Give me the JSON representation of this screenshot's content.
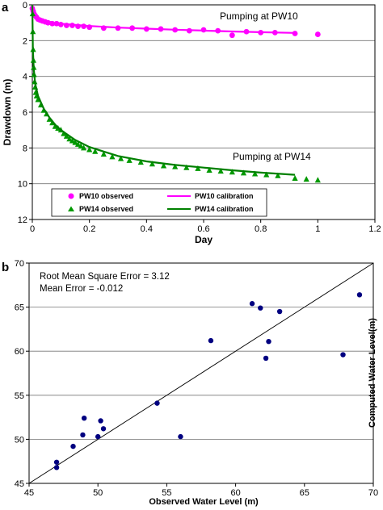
{
  "colors": {
    "pw10": "#ff00ff",
    "pw14": "#008000",
    "pw14_obs": "#009900",
    "scatter": "#000080",
    "grid": "#777777"
  },
  "chart_data": [
    {
      "panel_label": "a",
      "type": "line",
      "xlabel": "Day",
      "ylabel": "Drawdown (m)",
      "xlim": [
        0,
        1.2
      ],
      "ylim": [
        12,
        0
      ],
      "y_inverted": true,
      "x_ticks": [
        "0",
        "0.2",
        "0.4",
        "0.6",
        "0.8",
        "1",
        "1.2"
      ],
      "y_ticks": [
        "0",
        "2",
        "4",
        "6",
        "8",
        "10",
        "12"
      ],
      "grid": "horizontal",
      "legend_position": "bottom-center",
      "annotations": [
        "Pumping at PW10",
        "Pumping at PW14"
      ],
      "series": [
        {
          "name": "PW10 observed",
          "kind": "scatter",
          "marker": "circle",
          "x": [
            0.0,
            0.003,
            0.006,
            0.01,
            0.015,
            0.02,
            0.027,
            0.035,
            0.045,
            0.055,
            0.07,
            0.085,
            0.1,
            0.12,
            0.14,
            0.16,
            0.18,
            0.2,
            0.25,
            0.3,
            0.35,
            0.4,
            0.45,
            0.5,
            0.55,
            0.6,
            0.65,
            0.7,
            0.75,
            0.8,
            0.85,
            0.92,
            1.0
          ],
          "y": [
            0.2,
            0.35,
            0.5,
            0.6,
            0.7,
            0.8,
            0.85,
            0.9,
            0.95,
            1.0,
            1.05,
            1.05,
            1.1,
            1.15,
            1.15,
            1.2,
            1.2,
            1.25,
            1.3,
            1.3,
            1.3,
            1.35,
            1.35,
            1.4,
            1.45,
            1.4,
            1.45,
            1.7,
            1.5,
            1.55,
            1.55,
            1.6,
            1.65
          ]
        },
        {
          "name": "PW10 calibration",
          "kind": "line",
          "x": [
            0.0,
            0.002,
            0.005,
            0.01,
            0.02,
            0.04,
            0.07,
            0.1,
            0.15,
            0.2,
            0.3,
            0.4,
            0.5,
            0.6,
            0.7,
            0.8,
            0.92
          ],
          "y": [
            0.0,
            0.3,
            0.45,
            0.6,
            0.75,
            0.88,
            0.98,
            1.05,
            1.12,
            1.18,
            1.27,
            1.33,
            1.39,
            1.44,
            1.49,
            1.53,
            1.57
          ]
        },
        {
          "name": "PW14 observed",
          "kind": "scatter",
          "marker": "triangle",
          "x": [
            0.001,
            0.002,
            0.003,
            0.004,
            0.005,
            0.006,
            0.008,
            0.01,
            0.012,
            0.015,
            0.02,
            0.03,
            0.04,
            0.05,
            0.06,
            0.07,
            0.08,
            0.09,
            0.1,
            0.11,
            0.12,
            0.13,
            0.14,
            0.15,
            0.16,
            0.17,
            0.18,
            0.2,
            0.22,
            0.25,
            0.28,
            0.31,
            0.34,
            0.38,
            0.42,
            0.46,
            0.5,
            0.54,
            0.58,
            0.62,
            0.66,
            0.7,
            0.74,
            0.78,
            0.82,
            0.86,
            0.92,
            0.96,
            1.0
          ],
          "y": [
            0.5,
            1.5,
            2.5,
            3.1,
            3.5,
            3.9,
            4.3,
            4.6,
            4.9,
            5.1,
            5.3,
            5.6,
            5.9,
            6.1,
            6.4,
            6.6,
            6.8,
            6.9,
            7.0,
            7.2,
            7.35,
            7.5,
            7.6,
            7.7,
            7.8,
            7.9,
            8.0,
            8.1,
            8.2,
            8.35,
            8.5,
            8.6,
            8.7,
            8.8,
            8.9,
            9.0,
            9.05,
            9.1,
            9.15,
            9.25,
            9.3,
            9.35,
            9.4,
            9.45,
            9.5,
            9.55,
            9.7,
            9.75,
            9.8
          ]
        },
        {
          "name": "PW14 calibration",
          "kind": "line",
          "x": [
            0.0,
            0.002,
            0.005,
            0.01,
            0.02,
            0.04,
            0.06,
            0.08,
            0.1,
            0.15,
            0.2,
            0.25,
            0.3,
            0.4,
            0.5,
            0.6,
            0.7,
            0.8,
            0.92
          ],
          "y": [
            0.0,
            2.5,
            3.6,
            4.4,
            5.1,
            5.8,
            6.3,
            6.7,
            7.0,
            7.55,
            7.95,
            8.2,
            8.45,
            8.75,
            8.95,
            9.1,
            9.25,
            9.38,
            9.5
          ]
        }
      ]
    },
    {
      "panel_label": "b",
      "type": "scatter",
      "xlabel": "Observed Water Level (m)",
      "ylabel": "Computed Water Level(m)",
      "xlim": [
        45,
        70
      ],
      "ylim": [
        45,
        70
      ],
      "x_ticks": [
        "45",
        "50",
        "55",
        "60",
        "65",
        "70"
      ],
      "y_ticks": [
        "45",
        "50",
        "55",
        "60",
        "65",
        "70"
      ],
      "grid": "horizontal",
      "stats": [
        "Root Mean Square Error = 3.12",
        "Mean Error = -0.012"
      ],
      "reference_line": {
        "x": [
          45,
          70
        ],
        "y": [
          45,
          70
        ]
      },
      "points": {
        "x": [
          47.0,
          47.0,
          48.2,
          48.9,
          49.0,
          50.0,
          50.2,
          50.4,
          54.3,
          56.0,
          58.2,
          61.2,
          61.8,
          62.2,
          62.4,
          63.2,
          67.8,
          69.0
        ],
        "y": [
          46.8,
          47.4,
          49.2,
          50.5,
          52.4,
          50.3,
          52.1,
          51.2,
          54.1,
          50.3,
          61.2,
          65.4,
          64.9,
          59.2,
          61.1,
          64.5,
          59.6,
          66.4
        ]
      }
    }
  ]
}
